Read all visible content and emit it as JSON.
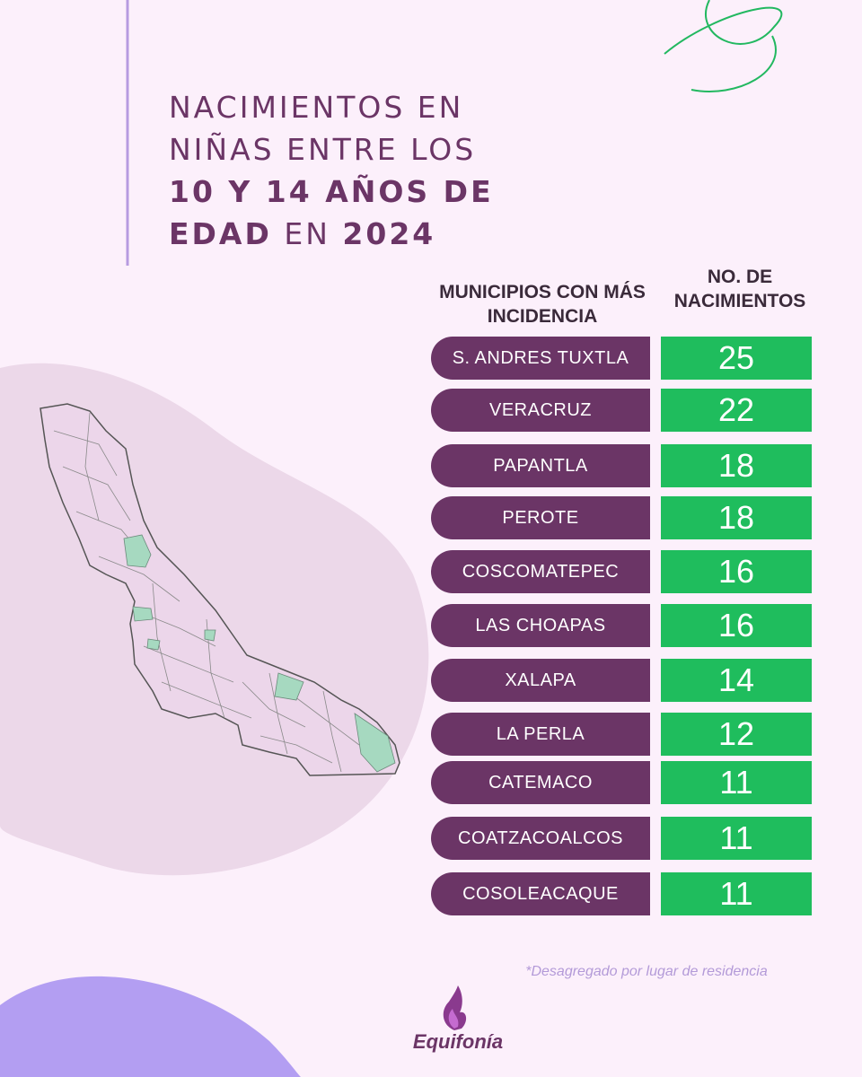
{
  "title": {
    "line1": "NACIMIENTOS EN",
    "line2": "NIÑAS  ENTRE LOS",
    "line3": "10 Y 14 AÑOS DE",
    "line4_bold": "EDAD",
    "line4_mid": " EN ",
    "line4_year": "2024"
  },
  "headers": {
    "left": "MUNICIPIOS CON MÁS INCIDENCIA",
    "right": "NO. DE NACIMIENTOS"
  },
  "chart_data": {
    "type": "table",
    "columns": [
      "MUNICIPIOS CON MÁS INCIDENCIA",
      "NO. DE NACIMIENTOS"
    ],
    "rows": [
      {
        "municipio": "S. ANDRES TUXTLA",
        "nacimientos": "25"
      },
      {
        "municipio": "VERACRUZ",
        "nacimientos": "22"
      },
      {
        "municipio": "PAPANTLA",
        "nacimientos": "18"
      },
      {
        "municipio": "PEROTE",
        "nacimientos": "18"
      },
      {
        "municipio": "COSCOMATEPEC",
        "nacimientos": "16"
      },
      {
        "municipio": "LAS CHOAPAS",
        "nacimientos": "16"
      },
      {
        "municipio": "XALAPA",
        "nacimientos": "14"
      },
      {
        "municipio": "LA PERLA",
        "nacimientos": "12"
      },
      {
        "municipio": "CATEMACO",
        "nacimientos": "11"
      },
      {
        "municipio": "COATZACOALCOS",
        "nacimientos": "11"
      },
      {
        "municipio": "COSOLEACAQUE",
        "nacimientos": "11"
      }
    ]
  },
  "footnote": "*Desagregado por lugar de residencia",
  "brand": "Equifonía",
  "colors": {
    "background": "#fcf0fb",
    "purple": "#6b3566",
    "green": "#1fbd5d",
    "map_highlight": "#a6d9c0",
    "lavender": "#b39ad8"
  }
}
